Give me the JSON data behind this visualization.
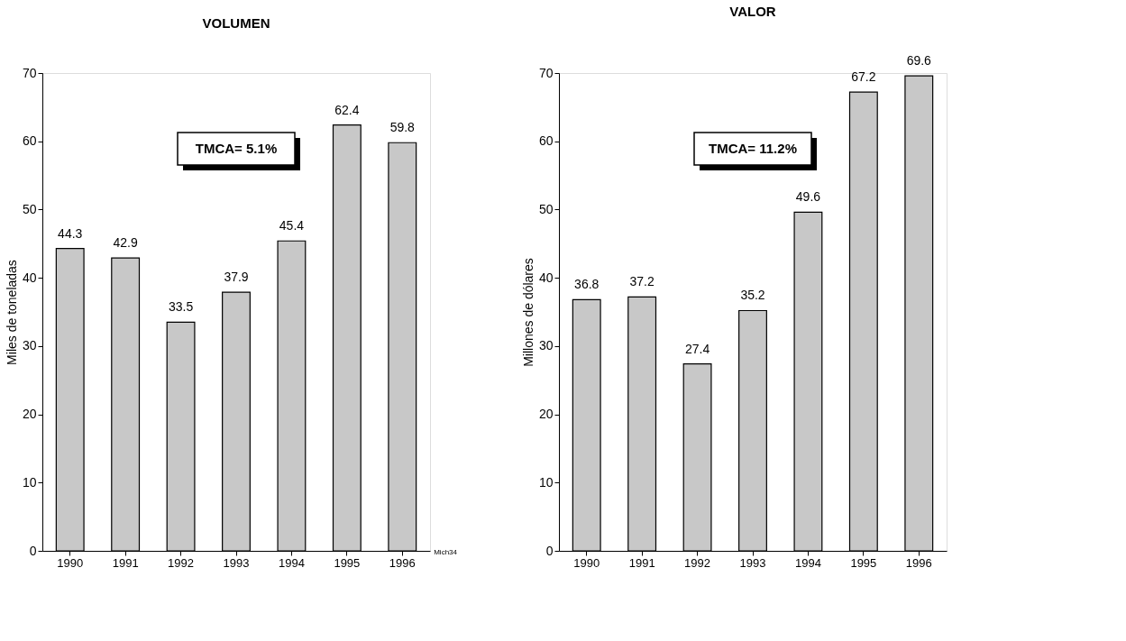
{
  "chart_data": [
    {
      "type": "bar",
      "title": "VOLUMEN",
      "ylabel": "Miles de toneladas",
      "categories": [
        "1990",
        "1991",
        "1992",
        "1993",
        "1994",
        "1995",
        "1996"
      ],
      "values": [
        44.3,
        42.9,
        33.5,
        37.9,
        45.4,
        62.4,
        59.8
      ],
      "color": "#c8c8c8",
      "ylim": [
        0,
        70
      ],
      "yticks": [
        0,
        10,
        20,
        30,
        40,
        50,
        60,
        70
      ],
      "grid": false,
      "data_labels": true,
      "annotations": [
        "TMCA= 5.1%",
        "Mich34"
      ]
    },
    {
      "type": "bar",
      "title": "VALOR",
      "ylabel": "Millones de dólares",
      "categories": [
        "1990",
        "1991",
        "1992",
        "1993",
        "1994",
        "1995",
        "1996"
      ],
      "values": [
        36.8,
        37.2,
        27.4,
        35.2,
        49.6,
        67.2,
        69.6
      ],
      "color": "#c8c8c8",
      "ylim": [
        0,
        70
      ],
      "yticks": [
        0,
        10,
        20,
        30,
        40,
        50,
        60,
        70
      ],
      "grid": false,
      "data_labels": true,
      "annotations": [
        "TMCA= 11.2%"
      ]
    }
  ]
}
